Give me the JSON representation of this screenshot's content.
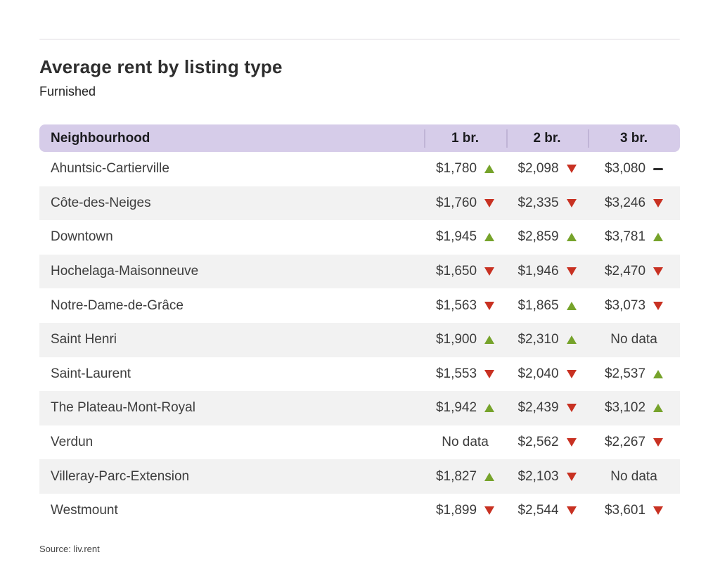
{
  "chart_data": {
    "type": "table",
    "title": "Average rent by listing type",
    "subtitle": "Furnished",
    "columns": [
      "Neighbourhood",
      "1 br.",
      "2 br.",
      "3 br."
    ],
    "rows": [
      {
        "name": "Ahuntsic-Cartierville",
        "values": [
          {
            "text": "$1,780",
            "trend": "up"
          },
          {
            "text": "$2,098",
            "trend": "down"
          },
          {
            "text": "$3,080",
            "trend": "flat"
          }
        ]
      },
      {
        "name": "Côte-des-Neiges",
        "values": [
          {
            "text": "$1,760",
            "trend": "down"
          },
          {
            "text": "$2,335",
            "trend": "down"
          },
          {
            "text": "$3,246",
            "trend": "down"
          }
        ]
      },
      {
        "name": "Downtown",
        "values": [
          {
            "text": "$1,945",
            "trend": "up"
          },
          {
            "text": "$2,859",
            "trend": "up"
          },
          {
            "text": "$3,781",
            "trend": "up"
          }
        ]
      },
      {
        "name": "Hochelaga-Maisonneuve",
        "values": [
          {
            "text": "$1,650",
            "trend": "down"
          },
          {
            "text": "$1,946",
            "trend": "down"
          },
          {
            "text": "$2,470",
            "trend": "down"
          }
        ]
      },
      {
        "name": "Notre-Dame-de-Grâce",
        "values": [
          {
            "text": "$1,563",
            "trend": "down"
          },
          {
            "text": "$1,865",
            "trend": "up"
          },
          {
            "text": "$3,073",
            "trend": "down"
          }
        ]
      },
      {
        "name": "Saint Henri",
        "values": [
          {
            "text": "$1,900",
            "trend": "up"
          },
          {
            "text": "$2,310",
            "trend": "up"
          },
          {
            "text": "No data",
            "trend": null
          }
        ]
      },
      {
        "name": "Saint-Laurent",
        "values": [
          {
            "text": "$1,553",
            "trend": "down"
          },
          {
            "text": "$2,040",
            "trend": "down"
          },
          {
            "text": "$2,537",
            "trend": "up"
          }
        ]
      },
      {
        "name": "The Plateau-Mont-Royal",
        "values": [
          {
            "text": "$1,942",
            "trend": "up"
          },
          {
            "text": "$2,439",
            "trend": "down"
          },
          {
            "text": "$3,102",
            "trend": "up"
          }
        ]
      },
      {
        "name": "Verdun",
        "values": [
          {
            "text": "No data",
            "trend": null
          },
          {
            "text": "$2,562",
            "trend": "down"
          },
          {
            "text": "$2,267",
            "trend": "down"
          }
        ]
      },
      {
        "name": "Villeray-Parc-Extension",
        "values": [
          {
            "text": "$1,827",
            "trend": "up"
          },
          {
            "text": "$2,103",
            "trend": "down"
          },
          {
            "text": "No data",
            "trend": null
          }
        ]
      },
      {
        "name": "Westmount",
        "values": [
          {
            "text": "$1,899",
            "trend": "down"
          },
          {
            "text": "$2,544",
            "trend": "down"
          },
          {
            "text": "$3,601",
            "trend": "down"
          }
        ]
      }
    ],
    "source": "Source: liv.rent",
    "layout": {
      "legend_position": "none",
      "grid": "off",
      "row_striping": "alternate"
    }
  },
  "colors": {
    "header_bg": "#d6cce9",
    "header_divider": "#c0b4d6",
    "row_alt_bg": "#f2f2f2",
    "trend_up": "#76a32b",
    "trend_down": "#c83122",
    "trend_flat": "#2b2b2b",
    "title_text": "#2e2e2e",
    "body_text": "#3c3c3c"
  }
}
